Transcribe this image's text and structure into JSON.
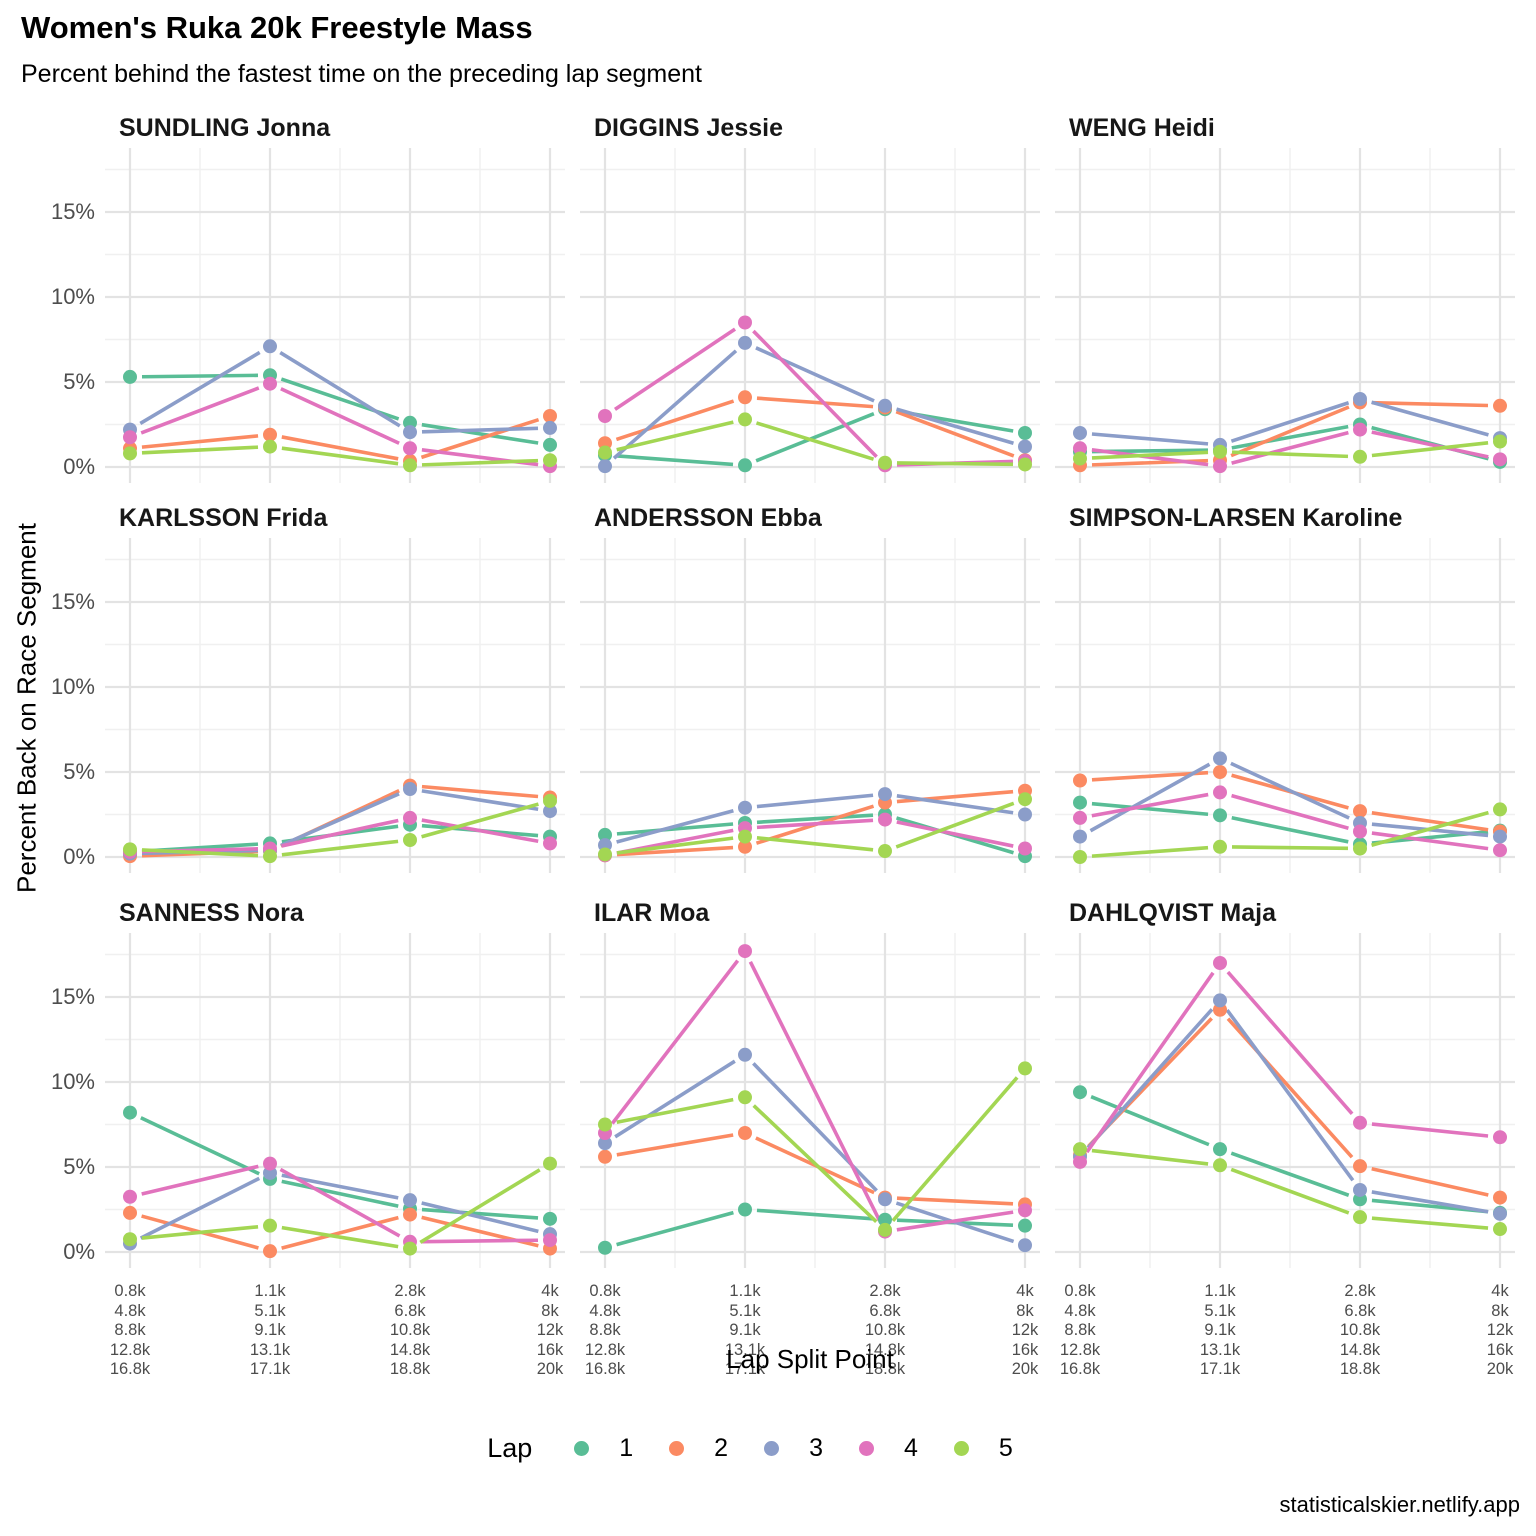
{
  "title": "Women's Ruka 20k Freestyle Mass",
  "subtitle": "Percent behind the fastest time on the preceding lap segment",
  "footer": "statisticalskier.netlify.app",
  "axes": {
    "x_title": "Lap Split Point",
    "y_title": "Percent Back on Race Segment"
  },
  "legend": {
    "title": "Lap",
    "items": [
      {
        "label": "1",
        "color": "#59BD96"
      },
      {
        "label": "2",
        "color": "#FB8A62"
      },
      {
        "label": "3",
        "color": "#8B9DC9"
      },
      {
        "label": "4",
        "color": "#E173BD"
      },
      {
        "label": "5",
        "color": "#A3D653"
      }
    ]
  },
  "chart_data": {
    "type": "line",
    "title": "Women's Ruka 20k Freestyle Mass",
    "subtitle": "Percent behind the fastest time on the preceding lap segment",
    "xlabel": "Lap Split Point",
    "ylabel": "Percent Back on Race Segment",
    "unit": "percent",
    "ylim": [
      -0.9,
      18.8
    ],
    "y_axis": {
      "labels": [
        {
          "label": "15%",
          "value": 15
        },
        {
          "label": "10%",
          "value": 10
        },
        {
          "label": "5%",
          "value": 5
        },
        {
          "label": "0%",
          "value": 0
        }
      ],
      "minor": [
        2.5,
        7.5,
        12.5,
        17.5
      ]
    },
    "x_tick_stacks": [
      [
        "0.8k",
        "4.8k",
        "8.8k",
        "12.8k",
        "16.8k"
      ],
      [
        "1.1k",
        "5.1k",
        "9.1k",
        "13.1k",
        "17.1k"
      ],
      [
        "2.8k",
        "6.8k",
        "10.8k",
        "14.8k",
        "18.8k"
      ],
      [
        "4k",
        "8k",
        "12k",
        "16k",
        "20k"
      ]
    ],
    "laps": [
      "1",
      "2",
      "3",
      "4",
      "5"
    ],
    "facets": [
      {
        "athlete": "SUNDLING Jonna",
        "series": [
          {
            "lap": "1",
            "values": [
              5.3,
              5.4,
              2.6,
              1.3
            ]
          },
          {
            "lap": "2",
            "values": [
              1.1,
              1.9,
              0.35,
              3.0
            ]
          },
          {
            "lap": "3",
            "values": [
              2.2,
              7.1,
              2.05,
              2.3
            ]
          },
          {
            "lap": "4",
            "values": [
              1.75,
              4.9,
              1.1,
              0.05
            ]
          },
          {
            "lap": "5",
            "values": [
              0.8,
              1.2,
              0.1,
              0.4
            ]
          }
        ]
      },
      {
        "athlete": "DIGGINS Jessie",
        "series": [
          {
            "lap": "1",
            "values": [
              0.7,
              0.1,
              3.4,
              2.0
            ]
          },
          {
            "lap": "2",
            "values": [
              1.4,
              4.1,
              3.5,
              0.4
            ]
          },
          {
            "lap": "3",
            "values": [
              0.05,
              7.3,
              3.6,
              1.2
            ]
          },
          {
            "lap": "4",
            "values": [
              3.0,
              8.5,
              0.1,
              0.35
            ]
          },
          {
            "lap": "5",
            "values": [
              0.85,
              2.8,
              0.25,
              0.15
            ]
          }
        ]
      },
      {
        "athlete": "WENG Heidi",
        "series": [
          {
            "lap": "1",
            "values": [
              0.9,
              1.0,
              2.5,
              0.3
            ]
          },
          {
            "lap": "2",
            "values": [
              0.1,
              0.4,
              3.8,
              3.6
            ]
          },
          {
            "lap": "3",
            "values": [
              2.0,
              1.3,
              4.0,
              1.7
            ]
          },
          {
            "lap": "4",
            "values": [
              1.1,
              0.05,
              2.2,
              0.45
            ]
          },
          {
            "lap": "5",
            "values": [
              0.5,
              0.9,
              0.6,
              1.5
            ]
          }
        ]
      },
      {
        "athlete": "KARLSSON Frida",
        "series": [
          {
            "lap": "1",
            "values": [
              0.3,
              0.8,
              1.9,
              1.2
            ]
          },
          {
            "lap": "2",
            "values": [
              0.05,
              0.35,
              4.2,
              3.5
            ]
          },
          {
            "lap": "3",
            "values": [
              0.2,
              0.4,
              4.0,
              2.7
            ]
          },
          {
            "lap": "4",
            "values": [
              0.3,
              0.5,
              2.3,
              0.8
            ]
          },
          {
            "lap": "5",
            "values": [
              0.45,
              0.05,
              1.0,
              3.3
            ]
          }
        ]
      },
      {
        "athlete": "ANDERSSON Ebba",
        "series": [
          {
            "lap": "1",
            "values": [
              1.3,
              2.0,
              2.5,
              0.05
            ]
          },
          {
            "lap": "2",
            "values": [
              0.1,
              0.6,
              3.2,
              3.9
            ]
          },
          {
            "lap": "3",
            "values": [
              0.7,
              2.9,
              3.7,
              2.5
            ]
          },
          {
            "lap": "4",
            "values": [
              0.1,
              1.7,
              2.2,
              0.5
            ]
          },
          {
            "lap": "5",
            "values": [
              0.15,
              1.2,
              0.35,
              3.4
            ]
          }
        ]
      },
      {
        "athlete": "SIMPSON-LARSEN Karoline",
        "series": [
          {
            "lap": "1",
            "values": [
              3.2,
              2.45,
              0.75,
              1.55
            ]
          },
          {
            "lap": "2",
            "values": [
              4.5,
              5.0,
              2.7,
              1.5
            ]
          },
          {
            "lap": "3",
            "values": [
              1.2,
              5.8,
              2.0,
              1.2
            ]
          },
          {
            "lap": "4",
            "values": [
              2.3,
              3.8,
              1.5,
              0.4
            ]
          },
          {
            "lap": "5",
            "values": [
              0.0,
              0.6,
              0.5,
              2.8
            ]
          }
        ]
      },
      {
        "athlete": "SANNESS Nora",
        "series": [
          {
            "lap": "1",
            "values": [
              8.2,
              4.3,
              2.55,
              1.95
            ]
          },
          {
            "lap": "2",
            "values": [
              2.3,
              0.05,
              2.2,
              0.2
            ]
          },
          {
            "lap": "3",
            "values": [
              0.5,
              4.65,
              3.05,
              1.05
            ]
          },
          {
            "lap": "4",
            "values": [
              3.25,
              5.2,
              0.6,
              0.7
            ]
          },
          {
            "lap": "5",
            "values": [
              0.75,
              1.55,
              0.2,
              5.2
            ]
          }
        ]
      },
      {
        "athlete": "ILAR Moa",
        "series": [
          {
            "lap": "1",
            "values": [
              0.25,
              2.5,
              1.9,
              1.55
            ]
          },
          {
            "lap": "2",
            "values": [
              5.6,
              7.0,
              3.2,
              2.8
            ]
          },
          {
            "lap": "3",
            "values": [
              6.4,
              11.6,
              3.1,
              0.4
            ]
          },
          {
            "lap": "4",
            "values": [
              7.0,
              17.7,
              1.2,
              2.45
            ]
          },
          {
            "lap": "5",
            "values": [
              7.5,
              9.1,
              1.3,
              10.8
            ]
          }
        ]
      },
      {
        "athlete": "DAHLQVIST Maja",
        "series": [
          {
            "lap": "1",
            "values": [
              9.4,
              6.05,
              3.1,
              2.3
            ]
          },
          {
            "lap": "2",
            "values": [
              5.7,
              14.25,
              5.05,
              3.2
            ]
          },
          {
            "lap": "3",
            "values": [
              5.6,
              14.8,
              3.65,
              2.25
            ]
          },
          {
            "lap": "4",
            "values": [
              5.3,
              17.0,
              7.6,
              6.75
            ]
          },
          {
            "lap": "5",
            "values": [
              6.05,
              5.1,
              2.05,
              1.35
            ]
          }
        ]
      }
    ]
  }
}
